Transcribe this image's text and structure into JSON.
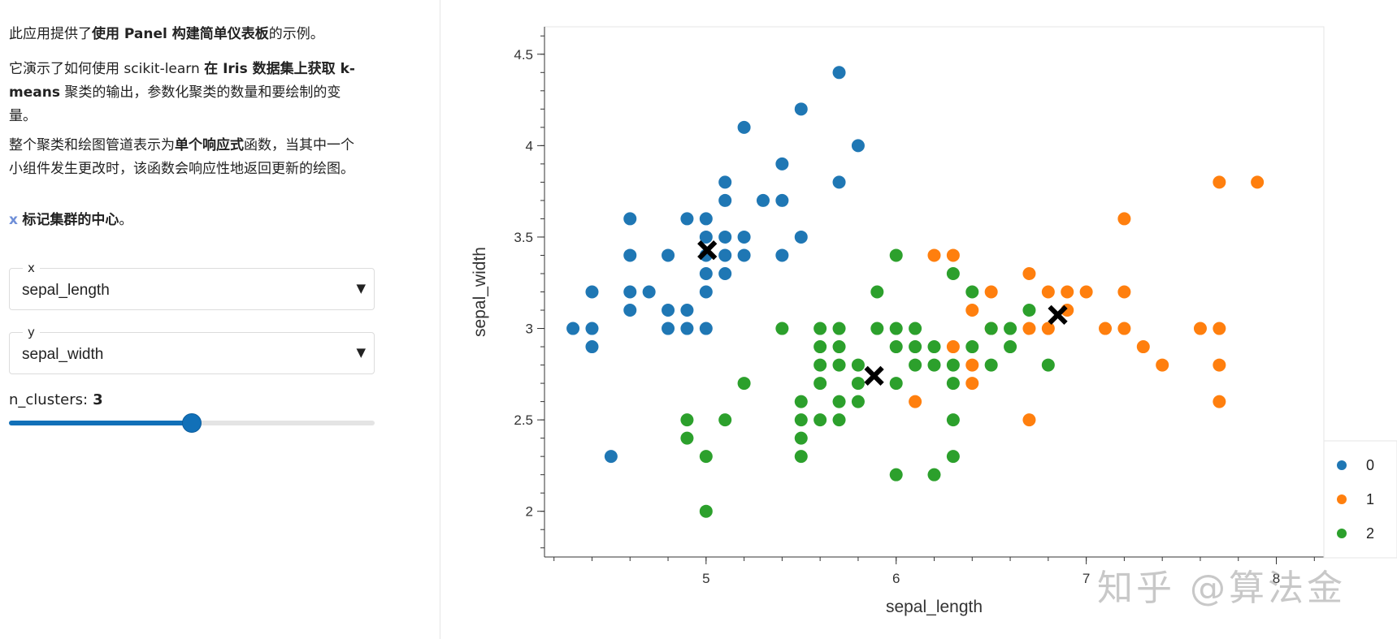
{
  "sidebar": {
    "para1": {
      "pre": "此应用提供了",
      "bold": "使用 Panel 构建简单仪表板",
      "post": "的示例。"
    },
    "para2": {
      "pre": "它演示了如何使用 scikit-learn ",
      "bold1": "在 Iris 数据集上获取 k-",
      "line2_bold": "means",
      "line2_post": " 聚类的输出，参数化聚类的数量和要绘制的变",
      "line3": "量。"
    },
    "para3": {
      "pre": "整个聚类和绘图管道表示为",
      "bold": "单个响应式",
      "post": "函数，当其中一个",
      "line2": "小组件发生更改时，该函数会响应性地返回更新的绘图。"
    },
    "para4": {
      "mark": "x",
      "bold": "标记集群的中心",
      "post": "。"
    },
    "x_select": {
      "legend": "x",
      "value": "sepal_length"
    },
    "y_select": {
      "legend": "y",
      "value": "sepal_width"
    },
    "slider": {
      "label": "n_clusters:",
      "value": "3",
      "fraction": 0.5
    }
  },
  "watermark": "知乎 @算法金",
  "chart_data": {
    "type": "scatter",
    "title": "",
    "xlabel": "sepal_length",
    "ylabel": "sepal_width",
    "xlim": [
      4.15,
      8.25
    ],
    "ylim": [
      1.75,
      4.65
    ],
    "xticks": [
      5,
      6,
      7,
      8
    ],
    "xtick_labels": [
      "5",
      "6",
      "7",
      "8"
    ],
    "yticks": [
      2,
      2.5,
      3,
      3.5,
      4,
      4.5
    ],
    "ytick_labels": [
      "2",
      "2.5",
      "3",
      "3.5",
      "4",
      "4.5"
    ],
    "legend": {
      "position": "right",
      "entries": [
        "0",
        "1",
        "2"
      ]
    },
    "colors": {
      "0": "#1f77b4",
      "1": "#ff7f0e",
      "2": "#2ca02c",
      "center": "#000000"
    },
    "series": [
      {
        "name": "0",
        "color": "#1f77b4",
        "points": [
          [
            5.7,
            4.4
          ],
          [
            5.2,
            4.1
          ],
          [
            5.5,
            4.2
          ],
          [
            5.8,
            4.0
          ],
          [
            5.4,
            3.9
          ],
          [
            5.7,
            3.8
          ],
          [
            5.1,
            3.8
          ],
          [
            5.1,
            3.7
          ],
          [
            5.3,
            3.7
          ],
          [
            5.4,
            3.7
          ],
          [
            4.6,
            3.6
          ],
          [
            4.9,
            3.6
          ],
          [
            5.0,
            3.6
          ],
          [
            5.0,
            3.5
          ],
          [
            5.1,
            3.5
          ],
          [
            5.2,
            3.5
          ],
          [
            5.5,
            3.5
          ],
          [
            4.6,
            3.4
          ],
          [
            4.8,
            3.4
          ],
          [
            5.0,
            3.4
          ],
          [
            5.1,
            3.4
          ],
          [
            5.2,
            3.4
          ],
          [
            5.4,
            3.4
          ],
          [
            5.0,
            3.3
          ],
          [
            5.1,
            3.3
          ],
          [
            4.4,
            3.2
          ],
          [
            4.6,
            3.2
          ],
          [
            4.7,
            3.2
          ],
          [
            5.0,
            3.2
          ],
          [
            4.6,
            3.1
          ],
          [
            4.8,
            3.1
          ],
          [
            4.9,
            3.1
          ],
          [
            4.3,
            3.0
          ],
          [
            4.4,
            3.0
          ],
          [
            4.8,
            3.0
          ],
          [
            4.9,
            3.0
          ],
          [
            5.0,
            3.0
          ],
          [
            4.4,
            2.9
          ],
          [
            4.5,
            2.3
          ]
        ]
      },
      {
        "name": "1",
        "color": "#ff7f0e",
        "points": [
          [
            7.7,
            3.8
          ],
          [
            7.9,
            3.8
          ],
          [
            7.2,
            3.6
          ],
          [
            6.2,
            3.4
          ],
          [
            6.3,
            3.4
          ],
          [
            6.7,
            3.3
          ],
          [
            6.5,
            3.2
          ],
          [
            6.8,
            3.2
          ],
          [
            6.9,
            3.2
          ],
          [
            7.0,
            3.2
          ],
          [
            7.2,
            3.2
          ],
          [
            6.4,
            3.1
          ],
          [
            6.9,
            3.1
          ],
          [
            6.5,
            3.0
          ],
          [
            6.7,
            3.0
          ],
          [
            6.8,
            3.0
          ],
          [
            7.1,
            3.0
          ],
          [
            7.2,
            3.0
          ],
          [
            7.6,
            3.0
          ],
          [
            7.7,
            3.0
          ],
          [
            6.3,
            2.9
          ],
          [
            7.3,
            2.9
          ],
          [
            6.4,
            2.8
          ],
          [
            7.4,
            2.8
          ],
          [
            7.7,
            2.8
          ],
          [
            6.4,
            2.7
          ],
          [
            6.1,
            2.6
          ],
          [
            7.7,
            2.6
          ],
          [
            6.7,
            2.5
          ]
        ]
      },
      {
        "name": "2",
        "color": "#2ca02c",
        "points": [
          [
            6.0,
            3.4
          ],
          [
            6.3,
            3.3
          ],
          [
            5.9,
            3.2
          ],
          [
            6.4,
            3.2
          ],
          [
            6.7,
            3.1
          ],
          [
            5.4,
            3.0
          ],
          [
            5.6,
            3.0
          ],
          [
            5.7,
            3.0
          ],
          [
            5.9,
            3.0
          ],
          [
            6.0,
            3.0
          ],
          [
            6.1,
            3.0
          ],
          [
            6.5,
            3.0
          ],
          [
            6.6,
            3.0
          ],
          [
            5.6,
            2.9
          ],
          [
            5.7,
            2.9
          ],
          [
            6.0,
            2.9
          ],
          [
            6.1,
            2.9
          ],
          [
            6.2,
            2.9
          ],
          [
            6.4,
            2.9
          ],
          [
            6.6,
            2.9
          ],
          [
            5.6,
            2.8
          ],
          [
            5.7,
            2.8
          ],
          [
            5.8,
            2.8
          ],
          [
            6.1,
            2.8
          ],
          [
            6.2,
            2.8
          ],
          [
            6.3,
            2.8
          ],
          [
            6.5,
            2.8
          ],
          [
            6.8,
            2.8
          ],
          [
            5.2,
            2.7
          ],
          [
            5.6,
            2.7
          ],
          [
            5.8,
            2.7
          ],
          [
            6.0,
            2.7
          ],
          [
            6.3,
            2.7
          ],
          [
            5.5,
            2.6
          ],
          [
            5.7,
            2.6
          ],
          [
            5.8,
            2.6
          ],
          [
            4.9,
            2.5
          ],
          [
            5.1,
            2.5
          ],
          [
            5.5,
            2.5
          ],
          [
            5.6,
            2.5
          ],
          [
            5.7,
            2.5
          ],
          [
            6.3,
            2.5
          ],
          [
            4.9,
            2.4
          ],
          [
            5.5,
            2.4
          ],
          [
            5.0,
            2.3
          ],
          [
            5.5,
            2.3
          ],
          [
            6.3,
            2.3
          ],
          [
            6.0,
            2.2
          ],
          [
            6.2,
            2.2
          ],
          [
            5.0,
            2.0
          ]
        ]
      }
    ],
    "centers": [
      [
        5.006,
        3.428
      ],
      [
        6.85,
        3.074
      ],
      [
        5.884,
        2.741
      ]
    ]
  }
}
